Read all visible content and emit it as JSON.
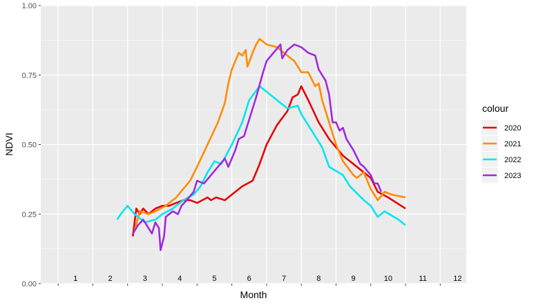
{
  "chart_data": {
    "type": "line",
    "xlabel": "Month",
    "ylabel": "NDVI",
    "xlim": [
      0.5,
      12.75
    ],
    "ylim": [
      0,
      1
    ],
    "y_ticks": [
      {
        "value": 0.0,
        "label": "0.00"
      },
      {
        "value": 0.25,
        "label": "0.25"
      },
      {
        "value": 0.5,
        "label": "0.50"
      },
      {
        "value": 0.75,
        "label": "0.75"
      },
      {
        "value": 1.0,
        "label": "1.00"
      }
    ],
    "month_labels": [
      "1",
      "2",
      "3",
      "4",
      "5",
      "6",
      "7",
      "8",
      "9",
      "10",
      "11",
      "12"
    ],
    "grid": true,
    "legend_title": "colour",
    "legend_position": "right",
    "series": [
      {
        "name": "2020",
        "color": "#e60000",
        "points": [
          [
            3.15,
            0.17
          ],
          [
            3.25,
            0.27
          ],
          [
            3.35,
            0.25
          ],
          [
            3.45,
            0.27
          ],
          [
            3.6,
            0.25
          ],
          [
            3.8,
            0.27
          ],
          [
            4.0,
            0.28
          ],
          [
            4.2,
            0.28
          ],
          [
            4.4,
            0.29
          ],
          [
            4.6,
            0.3
          ],
          [
            4.8,
            0.3
          ],
          [
            5.0,
            0.29
          ],
          [
            5.3,
            0.31
          ],
          [
            5.4,
            0.3
          ],
          [
            5.55,
            0.31
          ],
          [
            5.8,
            0.3
          ],
          [
            6.0,
            0.32
          ],
          [
            6.3,
            0.35
          ],
          [
            6.6,
            0.37
          ],
          [
            6.8,
            0.43
          ],
          [
            7.0,
            0.5
          ],
          [
            7.3,
            0.57
          ],
          [
            7.6,
            0.62
          ],
          [
            7.75,
            0.67
          ],
          [
            7.9,
            0.68
          ],
          [
            8.0,
            0.71
          ],
          [
            8.2,
            0.66
          ],
          [
            8.5,
            0.58
          ],
          [
            8.8,
            0.52
          ],
          [
            9.2,
            0.46
          ],
          [
            9.6,
            0.42
          ],
          [
            10.0,
            0.38
          ],
          [
            10.2,
            0.33
          ],
          [
            10.5,
            0.31
          ],
          [
            11.0,
            0.27
          ]
        ]
      },
      {
        "name": "2021",
        "color": "#ff8c00",
        "points": [
          [
            3.2,
            0.19
          ],
          [
            3.35,
            0.26
          ],
          [
            3.6,
            0.25
          ],
          [
            3.8,
            0.26
          ],
          [
            4.1,
            0.28
          ],
          [
            4.4,
            0.31
          ],
          [
            4.8,
            0.37
          ],
          [
            5.0,
            0.42
          ],
          [
            5.3,
            0.5
          ],
          [
            5.6,
            0.58
          ],
          [
            5.8,
            0.65
          ],
          [
            5.9,
            0.72
          ],
          [
            6.0,
            0.77
          ],
          [
            6.1,
            0.8
          ],
          [
            6.2,
            0.83
          ],
          [
            6.3,
            0.82
          ],
          [
            6.4,
            0.84
          ],
          [
            6.45,
            0.78
          ],
          [
            6.6,
            0.83
          ],
          [
            6.7,
            0.86
          ],
          [
            6.8,
            0.88
          ],
          [
            7.0,
            0.86
          ],
          [
            7.3,
            0.85
          ],
          [
            7.6,
            0.82
          ],
          [
            7.8,
            0.8
          ],
          [
            8.0,
            0.76
          ],
          [
            8.2,
            0.76
          ],
          [
            8.4,
            0.71
          ],
          [
            8.5,
            0.72
          ],
          [
            8.6,
            0.66
          ],
          [
            8.8,
            0.58
          ],
          [
            9.0,
            0.5
          ],
          [
            9.2,
            0.44
          ],
          [
            9.5,
            0.39
          ],
          [
            9.6,
            0.38
          ],
          [
            9.8,
            0.4
          ],
          [
            10.0,
            0.34
          ],
          [
            10.2,
            0.3
          ],
          [
            10.4,
            0.33
          ],
          [
            10.6,
            0.32
          ],
          [
            11.0,
            0.31
          ]
        ]
      },
      {
        "name": "2022",
        "color": "#00e6ee",
        "points": [
          [
            2.7,
            0.23
          ],
          [
            2.8,
            0.25
          ],
          [
            3.0,
            0.28
          ],
          [
            3.2,
            0.25
          ],
          [
            3.4,
            0.23
          ],
          [
            3.5,
            0.22
          ],
          [
            3.8,
            0.23
          ],
          [
            4.0,
            0.25
          ],
          [
            4.3,
            0.27
          ],
          [
            4.6,
            0.3
          ],
          [
            4.9,
            0.32
          ],
          [
            5.1,
            0.35
          ],
          [
            5.3,
            0.4
          ],
          [
            5.5,
            0.44
          ],
          [
            5.7,
            0.43
          ],
          [
            6.0,
            0.5
          ],
          [
            6.3,
            0.58
          ],
          [
            6.5,
            0.66
          ],
          [
            6.8,
            0.71
          ],
          [
            7.0,
            0.69
          ],
          [
            7.3,
            0.66
          ],
          [
            7.6,
            0.63
          ],
          [
            7.9,
            0.64
          ],
          [
            8.0,
            0.61
          ],
          [
            8.2,
            0.57
          ],
          [
            8.6,
            0.49
          ],
          [
            8.8,
            0.42
          ],
          [
            9.2,
            0.39
          ],
          [
            9.4,
            0.35
          ],
          [
            9.8,
            0.3
          ],
          [
            10.0,
            0.28
          ],
          [
            10.2,
            0.24
          ],
          [
            10.4,
            0.26
          ],
          [
            10.8,
            0.23
          ],
          [
            11.0,
            0.21
          ]
        ]
      },
      {
        "name": "2023",
        "color": "#a028e0",
        "points": [
          [
            3.15,
            0.18
          ],
          [
            3.3,
            0.21
          ],
          [
            3.45,
            0.23
          ],
          [
            3.6,
            0.2
          ],
          [
            3.7,
            0.18
          ],
          [
            3.8,
            0.22
          ],
          [
            3.9,
            0.2
          ],
          [
            3.95,
            0.12
          ],
          [
            4.05,
            0.17
          ],
          [
            4.1,
            0.24
          ],
          [
            4.3,
            0.26
          ],
          [
            4.45,
            0.25
          ],
          [
            4.55,
            0.28
          ],
          [
            4.7,
            0.3
          ],
          [
            4.9,
            0.33
          ],
          [
            5.0,
            0.37
          ],
          [
            5.2,
            0.36
          ],
          [
            5.4,
            0.39
          ],
          [
            5.6,
            0.42
          ],
          [
            5.8,
            0.45
          ],
          [
            5.9,
            0.42
          ],
          [
            6.1,
            0.48
          ],
          [
            6.2,
            0.52
          ],
          [
            6.35,
            0.53
          ],
          [
            6.5,
            0.59
          ],
          [
            6.7,
            0.67
          ],
          [
            6.9,
            0.76
          ],
          [
            7.0,
            0.8
          ],
          [
            7.2,
            0.83
          ],
          [
            7.4,
            0.86
          ],
          [
            7.45,
            0.81
          ],
          [
            7.6,
            0.84
          ],
          [
            7.8,
            0.86
          ],
          [
            8.0,
            0.85
          ],
          [
            8.2,
            0.83
          ],
          [
            8.4,
            0.82
          ],
          [
            8.5,
            0.77
          ],
          [
            8.6,
            0.75
          ],
          [
            8.7,
            0.73
          ],
          [
            8.8,
            0.68
          ],
          [
            8.9,
            0.58
          ],
          [
            9.0,
            0.58
          ],
          [
            9.1,
            0.55
          ],
          [
            9.2,
            0.56
          ],
          [
            9.3,
            0.52
          ],
          [
            9.5,
            0.48
          ],
          [
            9.7,
            0.43
          ],
          [
            9.8,
            0.42
          ],
          [
            10.0,
            0.39
          ],
          [
            10.1,
            0.36
          ],
          [
            10.2,
            0.36
          ],
          [
            10.3,
            0.33
          ]
        ]
      }
    ]
  }
}
